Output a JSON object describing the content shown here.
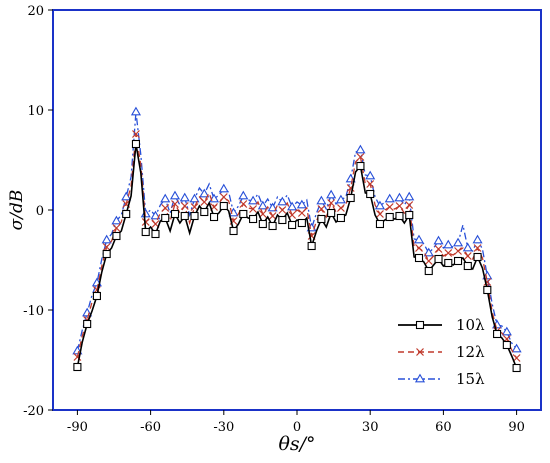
{
  "chart_data": {
    "type": "line",
    "title": "",
    "xlabel": "θs/°",
    "ylabel": "σ/dB",
    "xlim": [
      -100,
      100
    ],
    "ylim": [
      -20,
      20
    ],
    "x_ticks": [
      -90,
      -60,
      -30,
      0,
      30,
      60,
      90
    ],
    "y_ticks": [
      -20,
      -10,
      0,
      10,
      20
    ],
    "x_tick_labels": [
      "-90",
      "-60",
      "-30",
      "0",
      "30",
      "60",
      "90"
    ],
    "y_tick_labels": [
      "-20",
      "-10",
      "0",
      "10",
      "20"
    ],
    "grid": false,
    "legend": "bottom-right",
    "x": [
      -90,
      -88,
      -86,
      -84,
      -82,
      -80,
      -78,
      -76,
      -74,
      -72,
      -70,
      -68,
      -66,
      -64,
      -62,
      -60,
      -58,
      -56,
      -54,
      -52,
      -50,
      -48,
      -46,
      -44,
      -42,
      -40,
      -38,
      -36,
      -34,
      -32,
      -30,
      -28,
      -26,
      -24,
      -22,
      -20,
      -18,
      -16,
      -14,
      -12,
      -10,
      -8,
      -6,
      -4,
      -2,
      0,
      2,
      4,
      6,
      8,
      10,
      12,
      14,
      16,
      18,
      20,
      22,
      24,
      26,
      28,
      30,
      32,
      34,
      36,
      38,
      40,
      42,
      44,
      46,
      48,
      50,
      52,
      54,
      56,
      58,
      60,
      62,
      64,
      66,
      68,
      70,
      72,
      74,
      76,
      78,
      80,
      82,
      84,
      86,
      88,
      90
    ],
    "series": [
      {
        "name": "10λ",
        "color": "#000000",
        "dash": "solid",
        "marker": "square",
        "values": [
          -15.7,
          -13.2,
          -11.4,
          -10.1,
          -8.6,
          -6.2,
          -4.4,
          -3.8,
          -2.6,
          -2.1,
          -0.4,
          1.4,
          6.6,
          3.7,
          -2.2,
          -1.7,
          -2.4,
          -1.1,
          -0.8,
          -2.1,
          -0.4,
          -1.3,
          -0.6,
          -2.3,
          -0.6,
          0.4,
          -0.2,
          0.7,
          -0.7,
          -0.3,
          0.4,
          -0.1,
          -2.1,
          -1.4,
          -0.4,
          -0.8,
          -0.9,
          -0.2,
          -1.4,
          -0.7,
          -1.6,
          -0.5,
          -1.0,
          -0.3,
          -1.5,
          -1.0,
          -1.3,
          -0.8,
          -3.6,
          -2.1,
          -0.9,
          -1.7,
          -0.3,
          -1.2,
          -0.8,
          -0.5,
          1.2,
          3.8,
          4.4,
          1.7,
          1.6,
          -0.5,
          -1.4,
          -1.0,
          -0.7,
          -0.9,
          -0.6,
          -1.3,
          -0.5,
          -4.7,
          -4.8,
          -5.2,
          -6.1,
          -5.5,
          -4.9,
          -5.6,
          -5.3,
          -5.5,
          -5.1,
          -4.8,
          -5.6,
          -5.9,
          -4.7,
          -5.8,
          -8.0,
          -10.7,
          -12.4,
          -12.8,
          -13.5,
          -14.6,
          -15.8
        ]
      },
      {
        "name": "12λ",
        "color": "#c0392b",
        "dash": "dashed",
        "marker": "x",
        "values": [
          -14.7,
          -12.6,
          -11.0,
          -9.2,
          -8.0,
          -5.6,
          -3.7,
          -3.1,
          -1.8,
          -1.2,
          0.6,
          2.4,
          7.6,
          4.5,
          -1.2,
          -0.8,
          -1.4,
          -0.3,
          0.2,
          -1.1,
          0.6,
          -0.3,
          0.4,
          -1.3,
          0.3,
          1.3,
          0.8,
          1.7,
          0.3,
          0.7,
          1.3,
          0.9,
          -1.1,
          -0.4,
          0.6,
          0.2,
          0.1,
          0.8,
          -0.4,
          0.3,
          -0.6,
          0.5,
          0.0,
          0.7,
          -0.5,
          0.0,
          -0.3,
          0.2,
          -2.6,
          -1.1,
          0.1,
          -0.7,
          0.7,
          -0.2,
          0.2,
          0.5,
          2.2,
          4.8,
          5.3,
          2.6,
          2.6,
          0.5,
          -0.4,
          0.0,
          0.3,
          0.1,
          0.4,
          -0.3,
          0.5,
          -3.7,
          -3.8,
          -4.2,
          -5.1,
          -4.6,
          -3.9,
          -4.6,
          -4.3,
          -4.5,
          -4.1,
          -3.8,
          -4.6,
          -4.9,
          -3.8,
          -4.8,
          -7.2,
          -10.2,
          -12.1,
          -12.3,
          -12.9,
          -14.0,
          -14.8
        ]
      },
      {
        "name": "15λ",
        "color": "#2850d8",
        "dash": "dashdot",
        "marker": "triangle",
        "values": [
          -14.1,
          -12.0,
          -10.3,
          -8.5,
          -7.3,
          -4.9,
          -3.0,
          -2.4,
          -1.1,
          -0.5,
          1.3,
          3.3,
          9.8,
          5.5,
          -0.4,
          0.0,
          -0.6,
          0.5,
          1.1,
          -0.3,
          1.4,
          0.5,
          1.2,
          -0.5,
          1.1,
          2.2,
          1.6,
          2.6,
          1.1,
          1.5,
          2.1,
          1.8,
          -0.3,
          0.4,
          1.4,
          1.0,
          0.9,
          1.6,
          0.4,
          1.1,
          0.2,
          1.3,
          0.8,
          1.5,
          0.3,
          0.8,
          0.5,
          1.0,
          -1.8,
          -0.3,
          0.9,
          0.1,
          1.5,
          0.6,
          1.0,
          1.3,
          3.1,
          5.8,
          6.0,
          3.5,
          3.4,
          1.3,
          0.4,
          0.8,
          1.1,
          0.9,
          1.2,
          0.5,
          1.3,
          -2.9,
          -3.0,
          -3.4,
          -4.3,
          -3.8,
          -3.1,
          -3.8,
          -3.5,
          -3.7,
          -3.3,
          -1.5,
          -3.8,
          -4.1,
          -3.0,
          -3.9,
          -6.6,
          -9.4,
          -11.5,
          -11.6,
          -12.2,
          -13.3,
          -13.9
        ]
      }
    ]
  }
}
